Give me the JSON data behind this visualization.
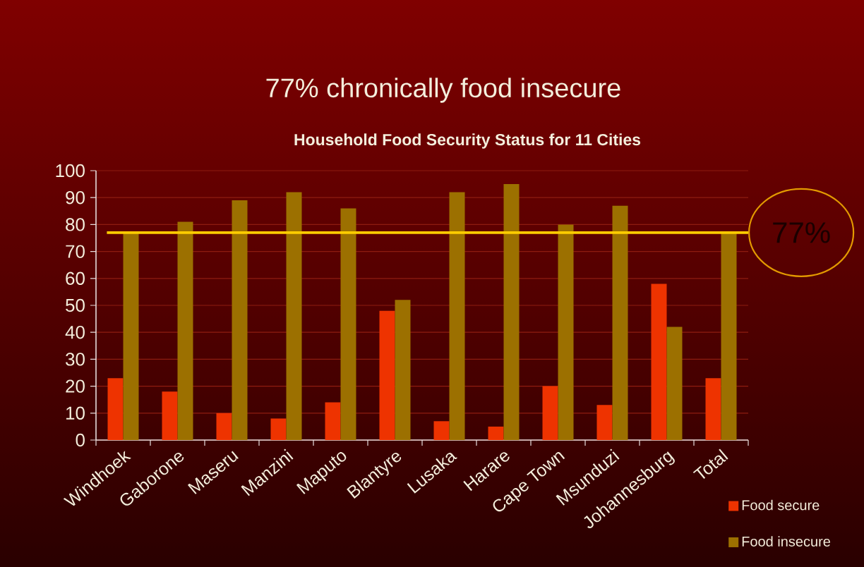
{
  "chart_data": {
    "type": "bar",
    "title": "77% chronically food insecure",
    "subtitle": "Household Food Security Status for 11 Cities",
    "categories": [
      "Windhoek",
      "Gaborone",
      "Maseru",
      "Manzini",
      "Maputo",
      "Blantyre",
      "Lusaka",
      "Harare",
      "Cape Town",
      "Msunduzi",
      "Johannesburg",
      "Total"
    ],
    "series": [
      {
        "name": "Food secure",
        "color": "#ee3300",
        "values": [
          23,
          18,
          10,
          8,
          14,
          48,
          7,
          5,
          20,
          13,
          58,
          23
        ]
      },
      {
        "name": "Food insecure",
        "color": "#9c7000",
        "values": [
          77,
          81,
          89,
          92,
          86,
          52,
          92,
          95,
          80,
          87,
          42,
          77
        ]
      }
    ],
    "ylim": [
      0,
      100
    ],
    "yticks": [
      0,
      10,
      20,
      30,
      40,
      50,
      60,
      70,
      80,
      90,
      100
    ],
    "grid": "y",
    "legend": "bottom right",
    "ref_lines": [
      {
        "axis": "y",
        "value": 77,
        "label": "77%",
        "color": "#ffcc00"
      }
    ]
  }
}
